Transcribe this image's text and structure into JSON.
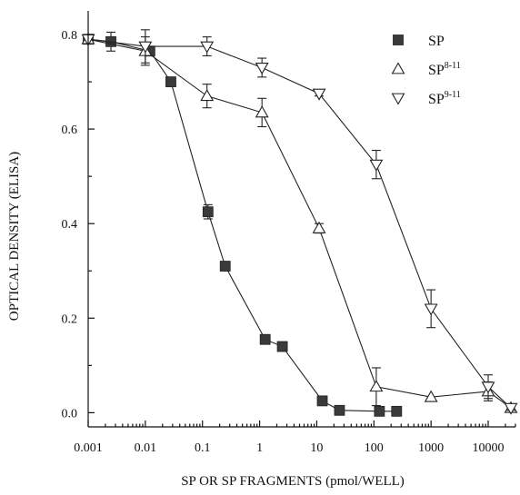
{
  "chart_data": {
    "type": "line",
    "xscale": "log",
    "xlim": [
      0.001,
      30000
    ],
    "ylim": [
      -0.03,
      0.85
    ],
    "xticks": [
      {
        "value": 0.001,
        "label": "0.001"
      },
      {
        "value": 0.01,
        "label": "0.01"
      },
      {
        "value": 0.1,
        "label": "0.1"
      },
      {
        "value": 1,
        "label": "1"
      },
      {
        "value": 10,
        "label": "10"
      },
      {
        "value": 100,
        "label": "100"
      },
      {
        "value": 1000,
        "label": "1000"
      },
      {
        "value": 10000,
        "label": "10000"
      }
    ],
    "yticks": [
      {
        "value": 0.0,
        "label": "0.0"
      },
      {
        "value": 0.2,
        "label": "0.2"
      },
      {
        "value": 0.4,
        "label": "0.4"
      },
      {
        "value": 0.6,
        "label": "0.6"
      },
      {
        "value": 0.8,
        "label": "0.8"
      }
    ],
    "xlabel": "SP OR SP FRAGMENTS (pmol/WELL)",
    "ylabel": "OPTICAL DENSITY (ELISA)",
    "legend_position": "top-right",
    "series": [
      {
        "name": "SP",
        "name_sup": "",
        "marker": "square",
        "points": [
          {
            "x": 0.001,
            "y": 0.79,
            "err": 0.01
          },
          {
            "x": 0.0025,
            "y": 0.785,
            "err": 0.02
          },
          {
            "x": 0.012,
            "y": 0.765,
            "err": 0.01
          },
          {
            "x": 0.028,
            "y": 0.7,
            "err": 0.0
          },
          {
            "x": 0.125,
            "y": 0.425,
            "err": 0.015
          },
          {
            "x": 0.25,
            "y": 0.31,
            "err": 0.0
          },
          {
            "x": 1.25,
            "y": 0.155,
            "err": 0.0
          },
          {
            "x": 2.5,
            "y": 0.14,
            "err": 0.0
          },
          {
            "x": 12.5,
            "y": 0.025,
            "err": 0.0
          },
          {
            "x": 25,
            "y": 0.005,
            "err": 0.0
          },
          {
            "x": 125,
            "y": 0.003,
            "err": 0.0
          },
          {
            "x": 250,
            "y": 0.003,
            "err": 0.0
          }
        ]
      },
      {
        "name": "SP",
        "name_sup": "8-11",
        "marker": "triangle-up",
        "points": [
          {
            "x": 0.001,
            "y": 0.79,
            "err": 0.01
          },
          {
            "x": 0.01,
            "y": 0.765,
            "err": 0.03
          },
          {
            "x": 0.12,
            "y": 0.67,
            "err": 0.025
          },
          {
            "x": 1.1,
            "y": 0.635,
            "err": 0.03
          },
          {
            "x": 11,
            "y": 0.39,
            "err": 0.01
          },
          {
            "x": 110,
            "y": 0.055,
            "err": 0.04
          },
          {
            "x": 1000,
            "y": 0.033,
            "err": 0.0
          },
          {
            "x": 10000,
            "y": 0.045,
            "err": 0.02
          },
          {
            "x": 25000,
            "y": 0.01,
            "err": 0.005
          }
        ]
      },
      {
        "name": "SP",
        "name_sup": "9-11",
        "marker": "triangle-down",
        "points": [
          {
            "x": 0.001,
            "y": 0.79,
            "err": 0.01
          },
          {
            "x": 0.01,
            "y": 0.775,
            "err": 0.035
          },
          {
            "x": 0.12,
            "y": 0.775,
            "err": 0.02
          },
          {
            "x": 1.1,
            "y": 0.73,
            "err": 0.02
          },
          {
            "x": 11,
            "y": 0.675,
            "err": 0.005
          },
          {
            "x": 110,
            "y": 0.525,
            "err": 0.03
          },
          {
            "x": 1000,
            "y": 0.22,
            "err": 0.04
          },
          {
            "x": 10000,
            "y": 0.055,
            "err": 0.025
          },
          {
            "x": 25000,
            "y": 0.01,
            "err": 0.005
          }
        ]
      }
    ]
  }
}
